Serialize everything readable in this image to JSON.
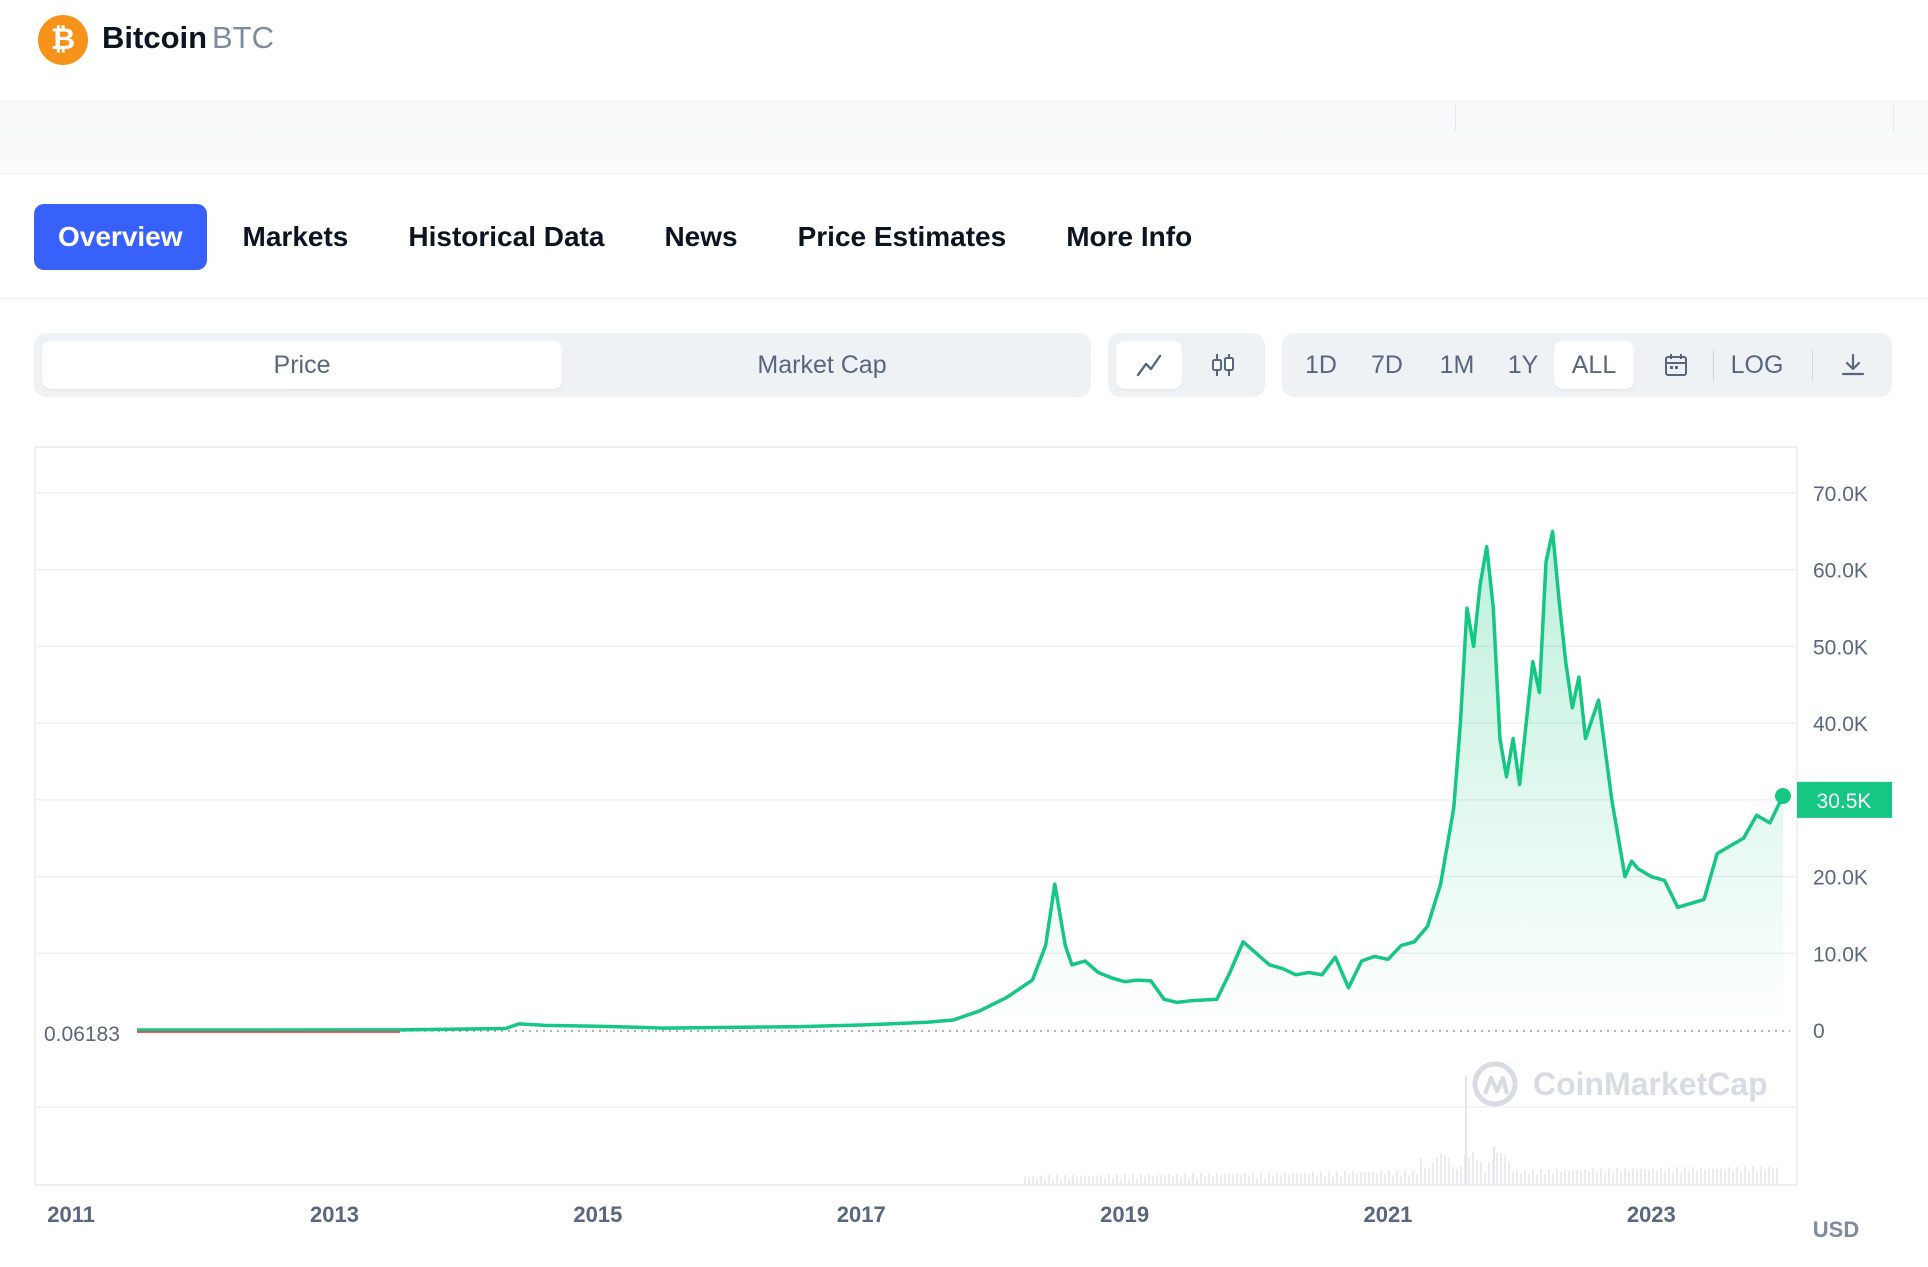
{
  "header": {
    "coin_name": "Bitcoin",
    "coin_symbol": "BTC",
    "logo_icon": "bitcoin-logo-icon",
    "logo_glyph": "₿"
  },
  "tabs": [
    {
      "label": "Overview",
      "active": true
    },
    {
      "label": "Markets",
      "active": false
    },
    {
      "label": "Historical Data",
      "active": false
    },
    {
      "label": "News",
      "active": false
    },
    {
      "label": "Price Estimates",
      "active": false
    },
    {
      "label": "More Info",
      "active": false
    }
  ],
  "toolbar": {
    "metric_price": "Price",
    "metric_market_cap": "Market Cap",
    "chart_types": [
      "line-chart-icon",
      "candlestick-icon"
    ],
    "ranges": [
      "1D",
      "7D",
      "1M",
      "1Y",
      "ALL"
    ],
    "active_range": "ALL",
    "calendar_icon": "calendar-icon",
    "log_label": "LOG",
    "download_icon": "download-icon"
  },
  "chart_data": {
    "type": "area",
    "x_ticks": [
      "2011",
      "2013",
      "2015",
      "2017",
      "2019",
      "2021",
      "2023"
    ],
    "y_ticks": [
      "70.0K",
      "60.0K",
      "50.0K",
      "40.0K",
      "30.0K",
      "20.0K",
      "10.0K",
      "0"
    ],
    "ylim": [
      0,
      70000
    ],
    "start_label": "0.06183",
    "current_price_label": "30.5K",
    "currency_label": "USD",
    "watermark": "CoinMarketCap",
    "line_color": "#16c784",
    "accent_color": "#3861fb",
    "series": [
      {
        "x": [
          2011.0,
          2012.0,
          2013.0,
          2013.8,
          2013.9,
          2014.1,
          2014.5,
          2015.0,
          2016.0,
          2016.5,
          2017.0,
          2017.2,
          2017.4,
          2017.6,
          2017.8,
          2017.9,
          2017.97,
          2018.05,
          2018.1,
          2018.2,
          2018.3,
          2018.4,
          2018.5,
          2018.6,
          2018.7,
          2018.8,
          2018.9,
          2019.0,
          2019.2,
          2019.3,
          2019.4,
          2019.5,
          2019.6,
          2019.7,
          2019.8,
          2019.9,
          2020.0,
          2020.1,
          2020.2,
          2020.3,
          2020.4,
          2020.5,
          2020.6,
          2020.7,
          2020.8,
          2020.9,
          2021.0,
          2021.05,
          2021.1,
          2021.15,
          2021.2,
          2021.25,
          2021.3,
          2021.35,
          2021.4,
          2021.45,
          2021.5,
          2021.55,
          2021.6,
          2021.65,
          2021.7,
          2021.75,
          2021.8,
          2021.85,
          2021.9,
          2021.95,
          2022.0,
          2022.1,
          2022.2,
          2022.3,
          2022.35,
          2022.4,
          2022.5,
          2022.6,
          2022.7,
          2022.8,
          2022.9,
          2023.0,
          2023.1,
          2023.2,
          2023.3,
          2023.4,
          2023.5
        ],
        "values": [
          0.06,
          5,
          13,
          200,
          800,
          600,
          500,
          250,
          430,
          650,
          1000,
          1300,
          2500,
          4200,
          6500,
          11000,
          19000,
          11000,
          8500,
          9000,
          7500,
          6800,
          6300,
          6500,
          6400,
          4000,
          3600,
          3800,
          4000,
          7500,
          11500,
          10000,
          8500,
          8000,
          7200,
          7500,
          7200,
          9500,
          5500,
          9000,
          9600,
          9200,
          11000,
          11500,
          13500,
          19000,
          29000,
          40000,
          55000,
          50000,
          58000,
          63000,
          55000,
          38000,
          33000,
          38000,
          32000,
          40000,
          48000,
          44000,
          61000,
          65000,
          56000,
          48000,
          42000,
          46000,
          38000,
          43000,
          30000,
          20000,
          22000,
          21000,
          20000,
          19500,
          16000,
          16500,
          17000,
          23000,
          24000,
          25000,
          28000,
          27000,
          30500
        ]
      }
    ]
  }
}
